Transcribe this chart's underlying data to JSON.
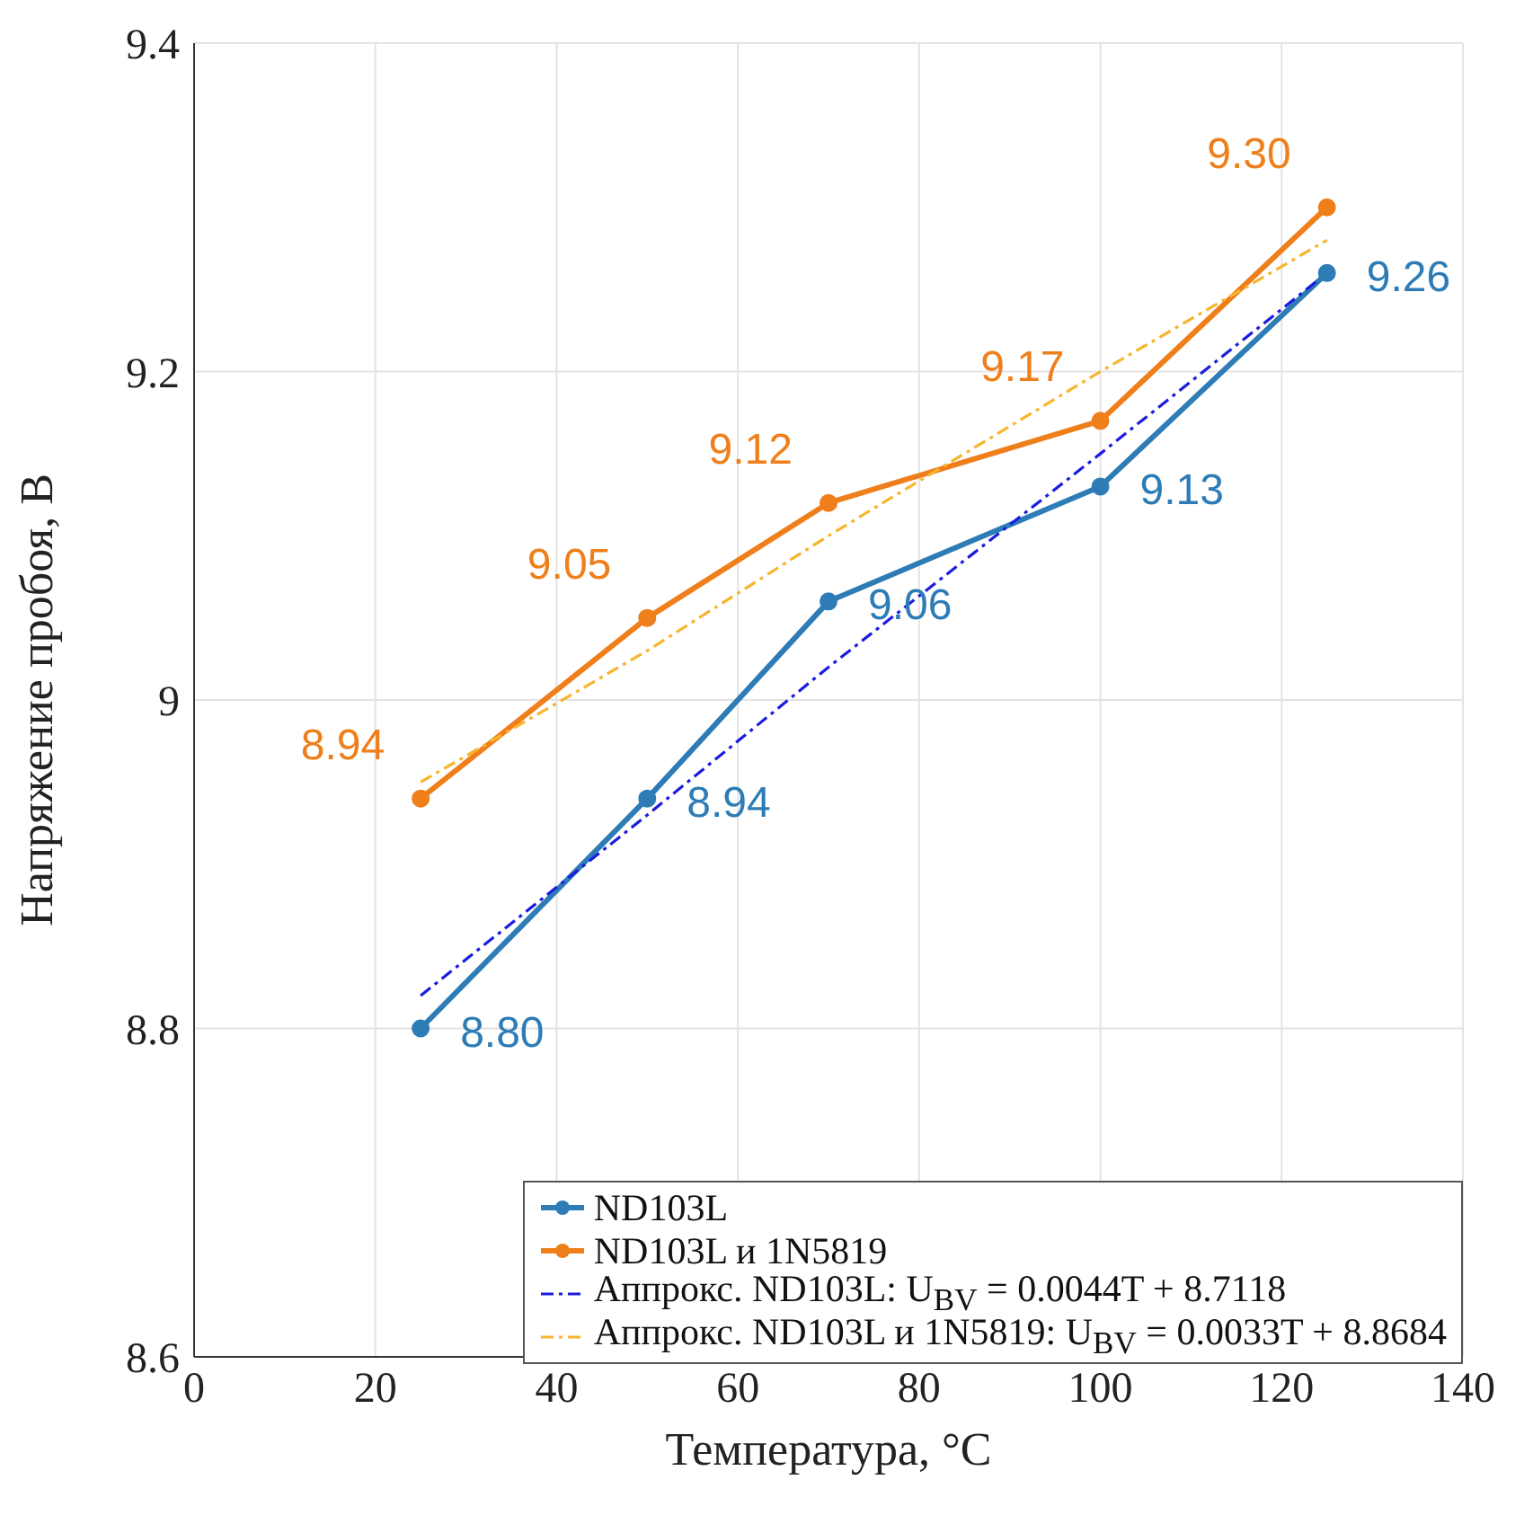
{
  "chart_data": {
    "type": "line",
    "xlabel": "Температура, °C",
    "ylabel": "Напряжение пробоя, В",
    "x": [
      25,
      50,
      70,
      100,
      125
    ],
    "xlim": [
      0,
      140
    ],
    "xticks": [
      0,
      20,
      40,
      60,
      80,
      100,
      120,
      140
    ],
    "ylim": [
      8.6,
      9.4
    ],
    "yticks": [
      8.6,
      8.8,
      9,
      9.2,
      9.4
    ],
    "grid": true,
    "legend": "bottom right",
    "marker": "circle",
    "line_style": "solid",
    "series": [
      {
        "name": "ND103L",
        "color": "#2e7cb6",
        "values": [
          8.8,
          8.94,
          9.06,
          9.13,
          9.26
        ],
        "value_labels": [
          "8.80",
          "8.94",
          "9.06",
          "9.13",
          "9.26"
        ]
      },
      {
        "name": "ND103L и 1N5819",
        "color": "#ef7f1a",
        "values": [
          8.94,
          9.05,
          9.12,
          9.17,
          9.3
        ],
        "value_labels": [
          "8.94",
          "9.05",
          "9.12",
          "9.17",
          "9.30"
        ]
      },
      {
        "name": "Аппрокс. ND103L: U$_{BV}$ = 0.0044T + 8.7118",
        "type": "line",
        "color": "#1c1ce0",
        "values": [
          8.82,
          8.93,
          9.02,
          9.15,
          9.26
        ],
        "marker": "none",
        "line_style": "dashed"
      },
      {
        "name": "Аппрокс. ND103L и 1N5819: U$_{BV}$ = 0.0033T + 8.8684",
        "type": "line",
        "color": "#f7b52e",
        "values": [
          8.95,
          9.03,
          9.1,
          9.2,
          9.28
        ],
        "marker": "none",
        "line_style": "dashed"
      }
    ]
  }
}
